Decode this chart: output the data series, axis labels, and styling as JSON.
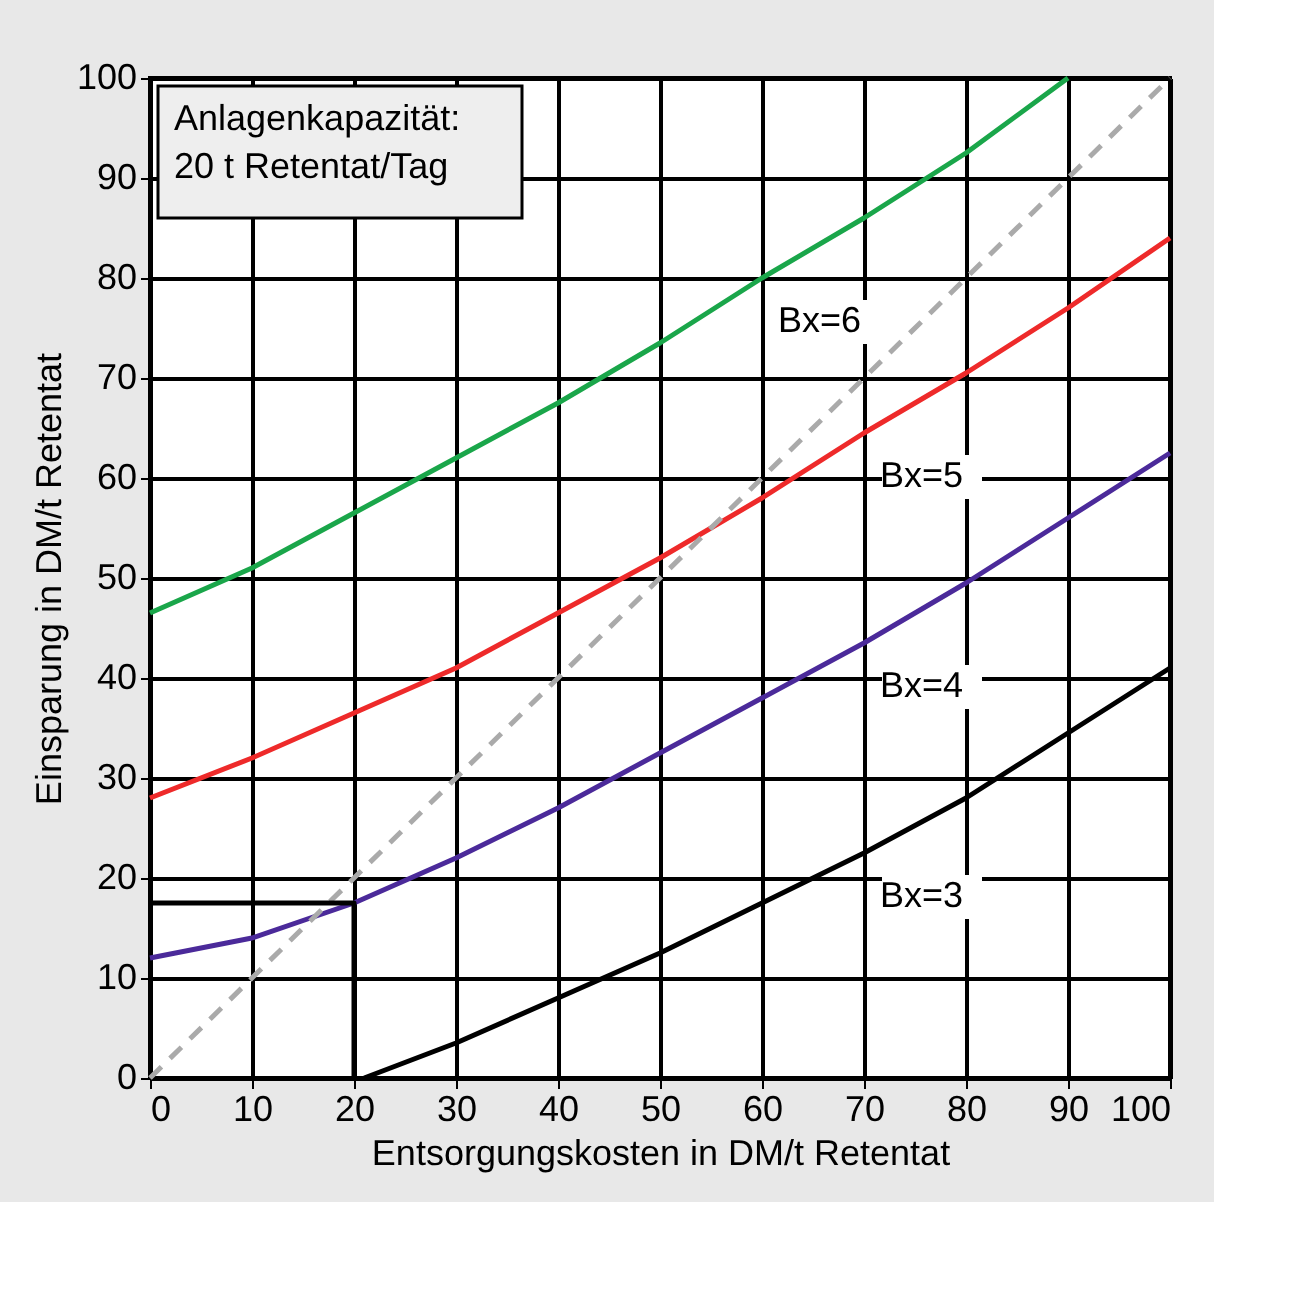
{
  "chart_data": {
    "type": "line",
    "xlabel": "Entsorgungskosten in DM/t Retentat",
    "ylabel": "Einsparung in DM/t Retentat",
    "xlim": [
      0,
      100
    ],
    "ylim": [
      0,
      100
    ],
    "xticks": [
      0,
      10,
      20,
      30,
      40,
      50,
      60,
      70,
      80,
      90,
      100
    ],
    "yticks": [
      0,
      10,
      20,
      30,
      40,
      50,
      60,
      70,
      80,
      90,
      100
    ],
    "grid": true,
    "marker": "none",
    "series": [
      {
        "name": "Bx=6",
        "color": "#1aa64a",
        "x": [
          0,
          10,
          20,
          30,
          40,
          50,
          60,
          70,
          80,
          90
        ],
        "values": [
          46.5,
          51,
          56.5,
          62,
          67.5,
          73.5,
          80,
          86,
          92.5,
          100
        ]
      },
      {
        "name": "Bx=5",
        "color": "#ee2a2a",
        "x": [
          0,
          10,
          20,
          30,
          40,
          50,
          60,
          70,
          80,
          90,
          100
        ],
        "values": [
          28,
          32,
          36.5,
          41,
          46.5,
          52,
          58,
          64.5,
          70.5,
          77,
          84
        ]
      },
      {
        "name": "Bx=4",
        "color": "#4b2a9a",
        "x": [
          0,
          10,
          20,
          30,
          40,
          50,
          60,
          70,
          80,
          90,
          100
        ],
        "values": [
          12,
          14,
          17.5,
          22,
          27,
          32.5,
          38,
          43.5,
          49.5,
          56,
          62.5
        ]
      },
      {
        "name": "Bx=3",
        "color": "#000000",
        "x": [
          21,
          30,
          40,
          50,
          60,
          70,
          80,
          90,
          100
        ],
        "values": [
          0,
          3.5,
          8,
          12.5,
          17.5,
          22.5,
          28,
          34.5,
          41
        ]
      },
      {
        "color": "#aaaaaa",
        "line_style": "dashed",
        "x": [
          0,
          100
        ],
        "values": [
          0,
          100
        ]
      },
      {
        "color": "#000000",
        "x": [
          20,
          20,
          0
        ],
        "values": [
          0,
          17.5,
          17.5
        ]
      }
    ],
    "annotations": [
      "Anlagenkapazität:\n20 t Retentat/Tag"
    ]
  }
}
